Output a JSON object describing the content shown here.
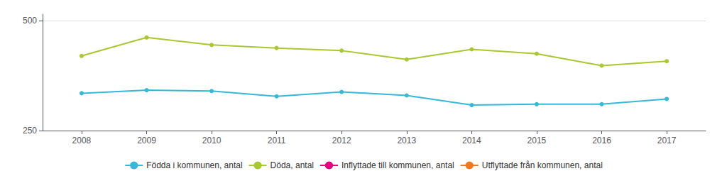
{
  "chart_data": {
    "type": "line",
    "x": [
      2008,
      2009,
      2010,
      2011,
      2012,
      2013,
      2014,
      2015,
      2016,
      2017
    ],
    "xlim": [
      2007.4,
      2017.6
    ],
    "xticks": [
      2008,
      2009,
      2010,
      2011,
      2012,
      2013,
      2014,
      2015,
      2016,
      2017
    ],
    "ylim": [
      250,
      515
    ],
    "yticks": [
      250,
      500
    ],
    "grid": true,
    "legend": "bottom",
    "marker": "circle",
    "series": [
      {
        "name": "Födda i kommunen, antal",
        "color": "#36b8d8",
        "values": [
          335,
          342,
          340,
          328,
          338,
          330,
          308,
          310,
          310,
          322
        ]
      },
      {
        "name": "Döda, antal",
        "color": "#a8c832",
        "values": [
          420,
          462,
          445,
          438,
          432,
          412,
          435,
          425,
          398,
          408
        ]
      },
      {
        "name": "Inflyttade till kommunen, antal",
        "color": "#e8007d",
        "values": [
          null,
          null,
          null,
          null,
          null,
          null,
          null,
          null,
          null,
          null
        ]
      },
      {
        "name": "Utflyttade från kommunen, antal",
        "color": "#f07820",
        "values": [
          null,
          null,
          null,
          null,
          null,
          null,
          null,
          null,
          null,
          null
        ]
      }
    ]
  }
}
